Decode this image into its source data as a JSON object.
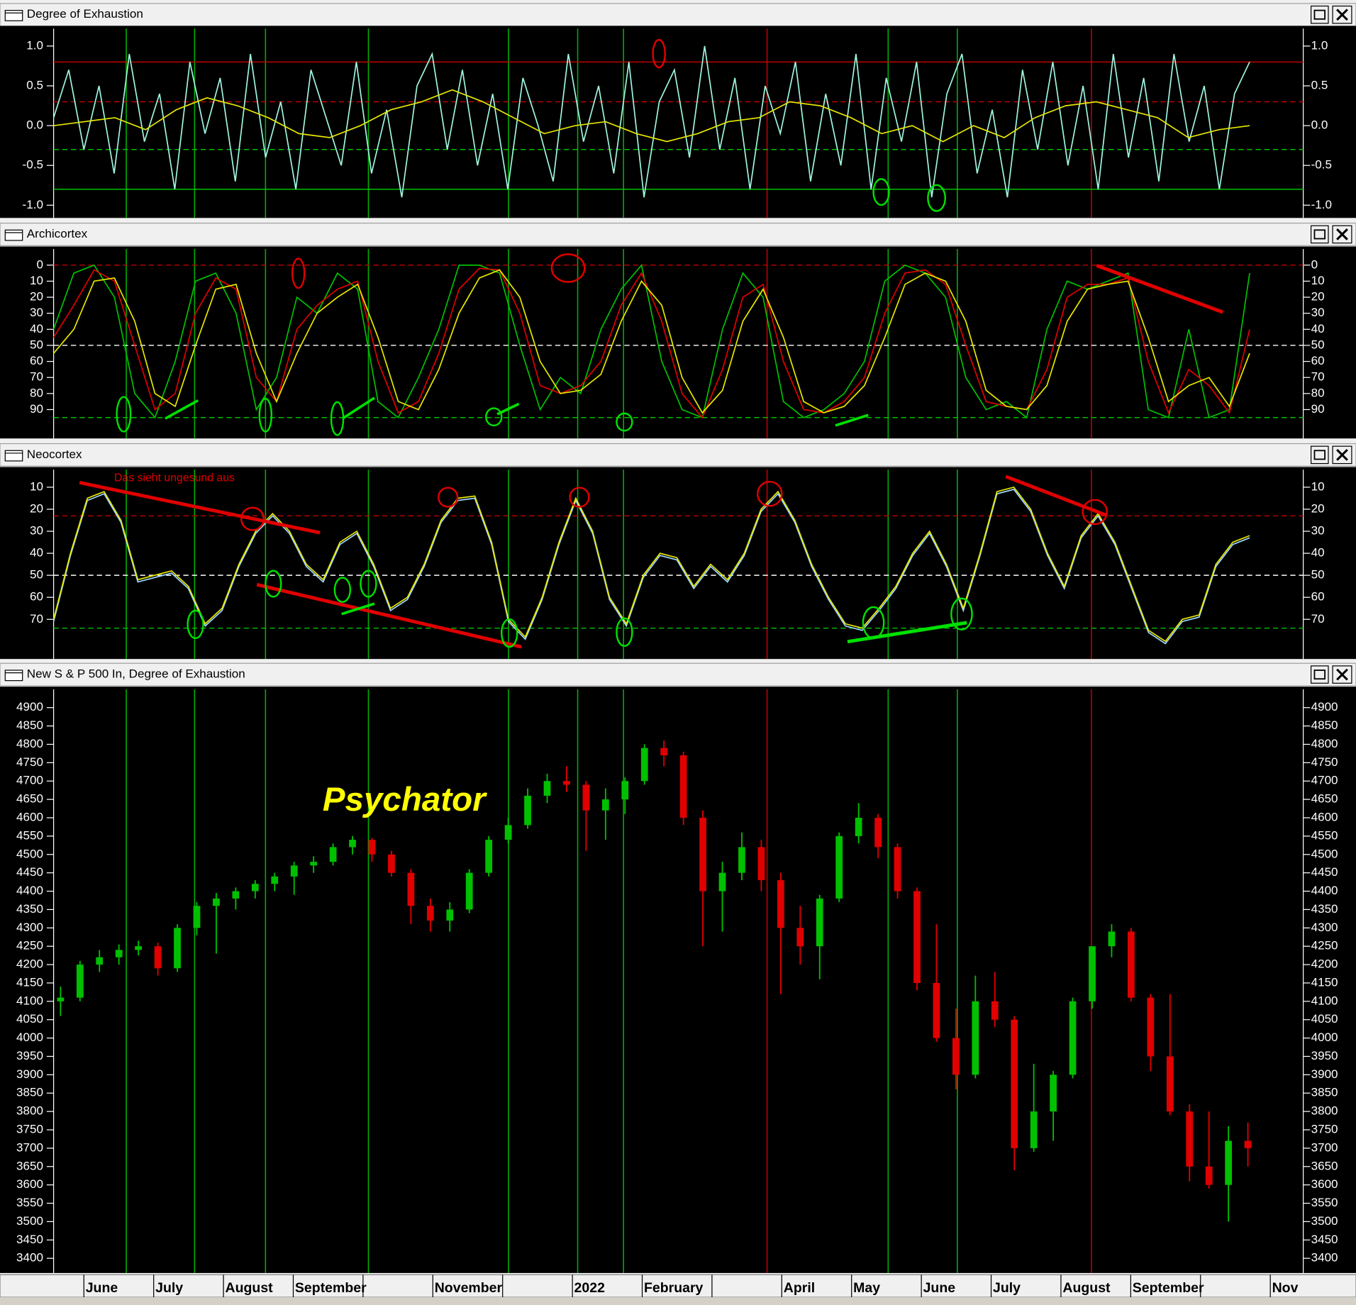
{
  "chart_data": [
    {
      "type": "line",
      "title": "Degree of Exhaustion",
      "ylim": [
        -1.16,
        1.22
      ],
      "reverse": false,
      "yticks": [
        {
          "value": 1,
          "label": "1.0"
        },
        0.5,
        {
          "value": 0,
          "label": "0.0"
        },
        -0.5,
        {
          "value": -1,
          "label": "-1.0"
        }
      ],
      "hlines": [
        {
          "value": 0.8,
          "color": "#c00000",
          "dash": false
        },
        {
          "value": 0.3,
          "color": "#c00000",
          "dash": true
        },
        {
          "value": -0.3,
          "color": "#00c000",
          "dash": true
        },
        {
          "value": -0.8,
          "color": "#00c000",
          "dash": false
        }
      ],
      "series": [
        {
          "color": "#9ff5df",
          "values": [
            0.1,
            0.7,
            -0.3,
            0.5,
            -0.6,
            0.9,
            -0.2,
            0.4,
            -0.8,
            0.8,
            -0.1,
            0.6,
            -0.7,
            0.9,
            -0.4,
            0.3,
            -0.8,
            0.7,
            0.1,
            -0.5,
            0.8,
            -0.6,
            0.2,
            -0.9,
            0.5,
            0.9,
            -0.3,
            0.7,
            -0.5,
            0.4,
            -0.8,
            0.6,
            0.0,
            -0.7,
            0.9,
            -0.2,
            0.5,
            -0.6,
            0.8,
            -0.9,
            0.3,
            0.7,
            -0.4,
            1.0,
            -0.3,
            0.6,
            -0.8,
            0.5,
            -0.1,
            0.8,
            -0.7,
            0.4,
            -0.5,
            0.9,
            -0.8,
            0.6,
            -0.2,
            0.8,
            -0.9,
            0.4,
            0.9,
            -0.6,
            0.2,
            -0.9,
            0.7,
            -0.3,
            0.8,
            -0.5,
            0.5,
            -0.8,
            0.9,
            -0.4,
            0.6,
            -0.7,
            0.9,
            -0.2,
            0.5,
            -0.8,
            0.4,
            0.8
          ]
        },
        {
          "color": "#e6e600",
          "values": [
            0.0,
            0.05,
            0.1,
            -0.05,
            0.2,
            0.35,
            0.25,
            0.1,
            -0.1,
            -0.15,
            0.0,
            0.2,
            0.3,
            0.45,
            0.3,
            0.1,
            -0.1,
            0.0,
            0.05,
            -0.1,
            -0.2,
            -0.1,
            0.05,
            0.1,
            0.3,
            0.25,
            0.1,
            -0.1,
            0.0,
            -0.2,
            0.0,
            -0.15,
            0.1,
            0.25,
            0.3,
            0.2,
            0.1,
            -0.15,
            -0.05,
            0.0
          ]
        }
      ]
    },
    {
      "type": "line",
      "title": "Archicortex",
      "ylim": [
        -10,
        108
      ],
      "reverse": true,
      "yticks": [
        0,
        10,
        20,
        30,
        40,
        50,
        60,
        70,
        80,
        90
      ],
      "hlines": [
        {
          "value": 0,
          "color": "#c00000",
          "dash": true
        },
        {
          "value": 50,
          "color": "#ffffff",
          "dash": true
        },
        {
          "value": 95,
          "color": "#00c000",
          "dash": true
        }
      ],
      "series": [
        {
          "color": "#00c000",
          "values": [
            40,
            5,
            0,
            20,
            80,
            95,
            60,
            10,
            5,
            30,
            90,
            70,
            20,
            30,
            5,
            15,
            85,
            95,
            70,
            40,
            0,
            0,
            5,
            50,
            90,
            70,
            80,
            40,
            15,
            0,
            60,
            90,
            95,
            40,
            5,
            20,
            85,
            95,
            90,
            80,
            60,
            10,
            0,
            5,
            20,
            70,
            90,
            85,
            95,
            40,
            10,
            15,
            10,
            5,
            90,
            95,
            40,
            95,
            90,
            5
          ]
        },
        {
          "color": "#e00000",
          "values": [
            45,
            25,
            3,
            10,
            50,
            90,
            80,
            30,
            8,
            15,
            70,
            85,
            40,
            25,
            15,
            10,
            60,
            92,
            85,
            55,
            15,
            2,
            3,
            30,
            75,
            80,
            75,
            60,
            25,
            5,
            35,
            80,
            95,
            65,
            20,
            12,
            60,
            90,
            92,
            85,
            70,
            30,
            5,
            3,
            12,
            50,
            85,
            88,
            90,
            65,
            20,
            12,
            12,
            8,
            60,
            92,
            65,
            75,
            92,
            40
          ]
        },
        {
          "color": "#e6e600",
          "values": [
            55,
            40,
            10,
            8,
            35,
            80,
            88,
            50,
            15,
            12,
            55,
            85,
            55,
            30,
            20,
            12,
            45,
            85,
            90,
            65,
            30,
            8,
            3,
            20,
            60,
            80,
            78,
            68,
            35,
            10,
            25,
            70,
            92,
            78,
            35,
            15,
            45,
            85,
            92,
            88,
            75,
            45,
            12,
            5,
            10,
            35,
            78,
            88,
            90,
            75,
            35,
            15,
            12,
            10,
            45,
            85,
            75,
            70,
            88,
            55
          ]
        }
      ]
    },
    {
      "type": "line",
      "title": "Neocortex",
      "ylim": [
        2,
        88
      ],
      "reverse": true,
      "yticks": [
        10,
        20,
        30,
        40,
        50,
        60,
        70
      ],
      "hlines": [
        {
          "value": 23,
          "color": "#c00000",
          "dash": true
        },
        {
          "value": 50,
          "color": "#ffffff",
          "dash": true
        },
        {
          "value": 74,
          "color": "#00c000",
          "dash": true
        }
      ],
      "annotation": "Das sieht ungesund aus",
      "series": [
        {
          "color": "#9fd8ff",
          "values": [
            71,
            41,
            16,
            13,
            26,
            53,
            51,
            49,
            56,
            73,
            66,
            46,
            31,
            23,
            31,
            46,
            53,
            36,
            31,
            46,
            66,
            61,
            46,
            26,
            16,
            15,
            36,
            71,
            79,
            61,
            36,
            16,
            31,
            61,
            73,
            51,
            41,
            43,
            56,
            46,
            53,
            41,
            21,
            13,
            26,
            46,
            61,
            73,
            75,
            66,
            56,
            41,
            31,
            46,
            66,
            41,
            13,
            11,
            21,
            41,
            56,
            33,
            23,
            36,
            56,
            76,
            81,
            71,
            69,
            46,
            36,
            33
          ]
        },
        {
          "color": "#e6e600",
          "values": [
            70,
            40,
            15,
            12,
            25,
            52,
            50,
            48,
            55,
            72,
            65,
            45,
            30,
            22,
            30,
            45,
            52,
            35,
            30,
            45,
            65,
            60,
            45,
            25,
            15,
            14,
            35,
            70,
            78,
            60,
            35,
            15,
            30,
            60,
            72,
            50,
            40,
            42,
            55,
            45,
            52,
            40,
            20,
            12,
            25,
            45,
            60,
            72,
            74,
            65,
            55,
            40,
            30,
            45,
            65,
            40,
            12,
            10,
            20,
            40,
            55,
            32,
            22,
            35,
            55,
            75,
            80,
            70,
            68,
            45,
            35,
            32
          ]
        }
      ]
    },
    {
      "type": "candlestick",
      "title": "New S & P 500 In, Degree of Exhaustion",
      "ylim": [
        3360,
        4950
      ],
      "reverse": false,
      "yticks": [
        3400,
        3450,
        3500,
        3550,
        3600,
        3650,
        3700,
        3750,
        3800,
        3850,
        3900,
        3950,
        4000,
        4050,
        4100,
        4150,
        4200,
        4250,
        4300,
        4350,
        4400,
        4450,
        4500,
        4550,
        4600,
        4650,
        4700,
        4750,
        4800,
        4850,
        4900
      ],
      "hlines": [],
      "annotation": "Psychator",
      "up_color": "#00c000",
      "down_color": "#e00000",
      "categories": [
        "June",
        "July",
        "August",
        "September",
        null,
        "November",
        null,
        "2022",
        "February",
        null,
        "April",
        "May",
        "June",
        "July",
        "August",
        "September",
        null,
        "Nov"
      ],
      "candles": [
        [
          4100,
          4140,
          4060,
          4110
        ],
        [
          4110,
          4210,
          4100,
          4200
        ],
        [
          4200,
          4240,
          4180,
          4220
        ],
        [
          4220,
          4255,
          4200,
          4240
        ],
        [
          4240,
          4265,
          4225,
          4250
        ],
        [
          4250,
          4260,
          4170,
          4190
        ],
        [
          4190,
          4310,
          4180,
          4300
        ],
        [
          4300,
          4370,
          4280,
          4360
        ],
        [
          4360,
          4395,
          4230,
          4380
        ],
        [
          4380,
          4410,
          4350,
          4400
        ],
        [
          4400,
          4430,
          4380,
          4420
        ],
        [
          4420,
          4450,
          4400,
          4440
        ],
        [
          4440,
          4480,
          4390,
          4470
        ],
        [
          4470,
          4495,
          4450,
          4480
        ],
        [
          4480,
          4530,
          4470,
          4520
        ],
        [
          4520,
          4550,
          4500,
          4540
        ],
        [
          4540,
          4545,
          4480,
          4500
        ],
        [
          4500,
          4510,
          4440,
          4450
        ],
        [
          4450,
          4460,
          4310,
          4360
        ],
        [
          4360,
          4380,
          4290,
          4320
        ],
        [
          4320,
          4370,
          4290,
          4350
        ],
        [
          4350,
          4460,
          4340,
          4450
        ],
        [
          4450,
          4550,
          4440,
          4540
        ],
        [
          4540,
          4600,
          4530,
          4580
        ],
        [
          4580,
          4680,
          4570,
          4660
        ],
        [
          4660,
          4720,
          4640,
          4700
        ],
        [
          4700,
          4740,
          4670,
          4690
        ],
        [
          4690,
          4700,
          4510,
          4620
        ],
        [
          4620,
          4680,
          4540,
          4650
        ],
        [
          4650,
          4710,
          4610,
          4700
        ],
        [
          4700,
          4800,
          4690,
          4790
        ],
        [
          4790,
          4810,
          4740,
          4770
        ],
        [
          4770,
          4780,
          4580,
          4600
        ],
        [
          4600,
          4620,
          4250,
          4400
        ],
        [
          4400,
          4480,
          4290,
          4450
        ],
        [
          4450,
          4560,
          4430,
          4520
        ],
        [
          4520,
          4540,
          4400,
          4430
        ],
        [
          4430,
          4450,
          4120,
          4300
        ],
        [
          4300,
          4360,
          4200,
          4250
        ],
        [
          4250,
          4390,
          4160,
          4380
        ],
        [
          4380,
          4560,
          4370,
          4550
        ],
        [
          4550,
          4640,
          4530,
          4600
        ],
        [
          4600,
          4610,
          4490,
          4520
        ],
        [
          4520,
          4530,
          4380,
          4400
        ],
        [
          4400,
          4410,
          4130,
          4150
        ],
        [
          4150,
          4310,
          3990,
          4000
        ],
        [
          4000,
          4080,
          3860,
          3900
        ],
        [
          3900,
          4170,
          3890,
          4100
        ],
        [
          4100,
          4180,
          4030,
          4050
        ],
        [
          4050,
          4060,
          3640,
          3700
        ],
        [
          3700,
          3930,
          3690,
          3800
        ],
        [
          3800,
          3910,
          3720,
          3900
        ],
        [
          3900,
          4110,
          3890,
          4100
        ],
        [
          4100,
          4250,
          4080,
          4250
        ],
        [
          4250,
          4310,
          4220,
          4290
        ],
        [
          4290,
          4300,
          4100,
          4110
        ],
        [
          4110,
          4120,
          3910,
          3950
        ],
        [
          3950,
          4120,
          3790,
          3800
        ],
        [
          3800,
          3820,
          3610,
          3650
        ],
        [
          3650,
          3800,
          3590,
          3600
        ],
        [
          3600,
          3760,
          3500,
          3720
        ],
        [
          3720,
          3770,
          3650,
          3700
        ]
      ]
    }
  ]
}
